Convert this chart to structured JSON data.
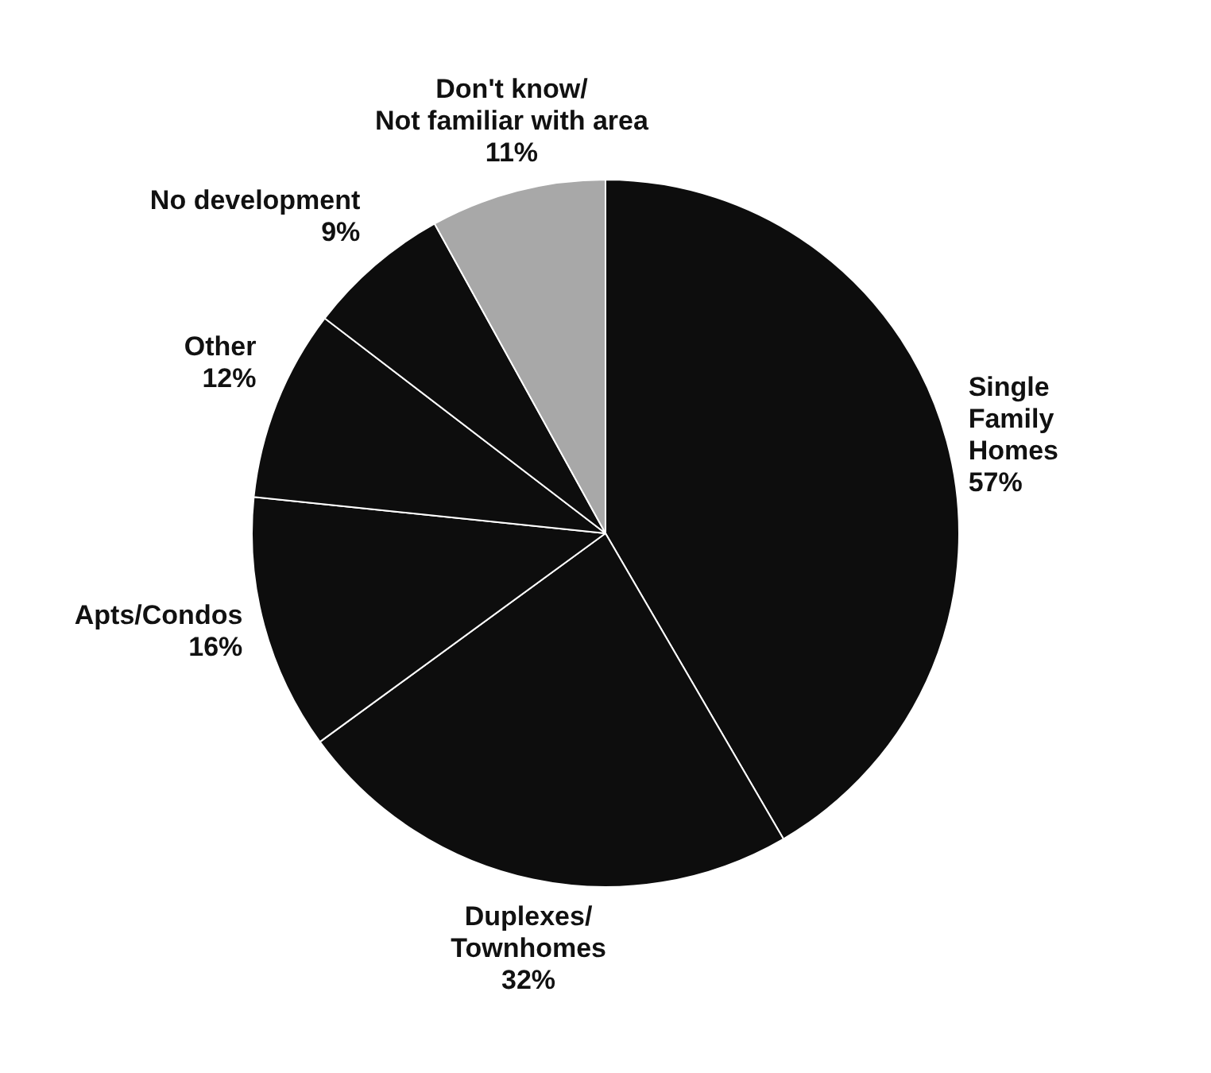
{
  "chart_data": {
    "type": "pie",
    "categories": [
      "Single\nFamily\nHomes",
      "Duplexes/\nTownhomes",
      "Apts/Condos",
      "Other",
      "No development",
      "Don't know/\nNot familiar with area"
    ],
    "values": [
      57,
      32,
      16,
      12,
      9,
      11
    ],
    "value_labels": [
      "57%",
      "32%",
      "16%",
      "12%",
      "9%",
      "11%"
    ],
    "colors": [
      "#0d0d0d",
      "#0d0d0d",
      "#0d0d0d",
      "#0d0d0d",
      "#0d0d0d",
      "#a8a8a8"
    ],
    "legend": false
  }
}
